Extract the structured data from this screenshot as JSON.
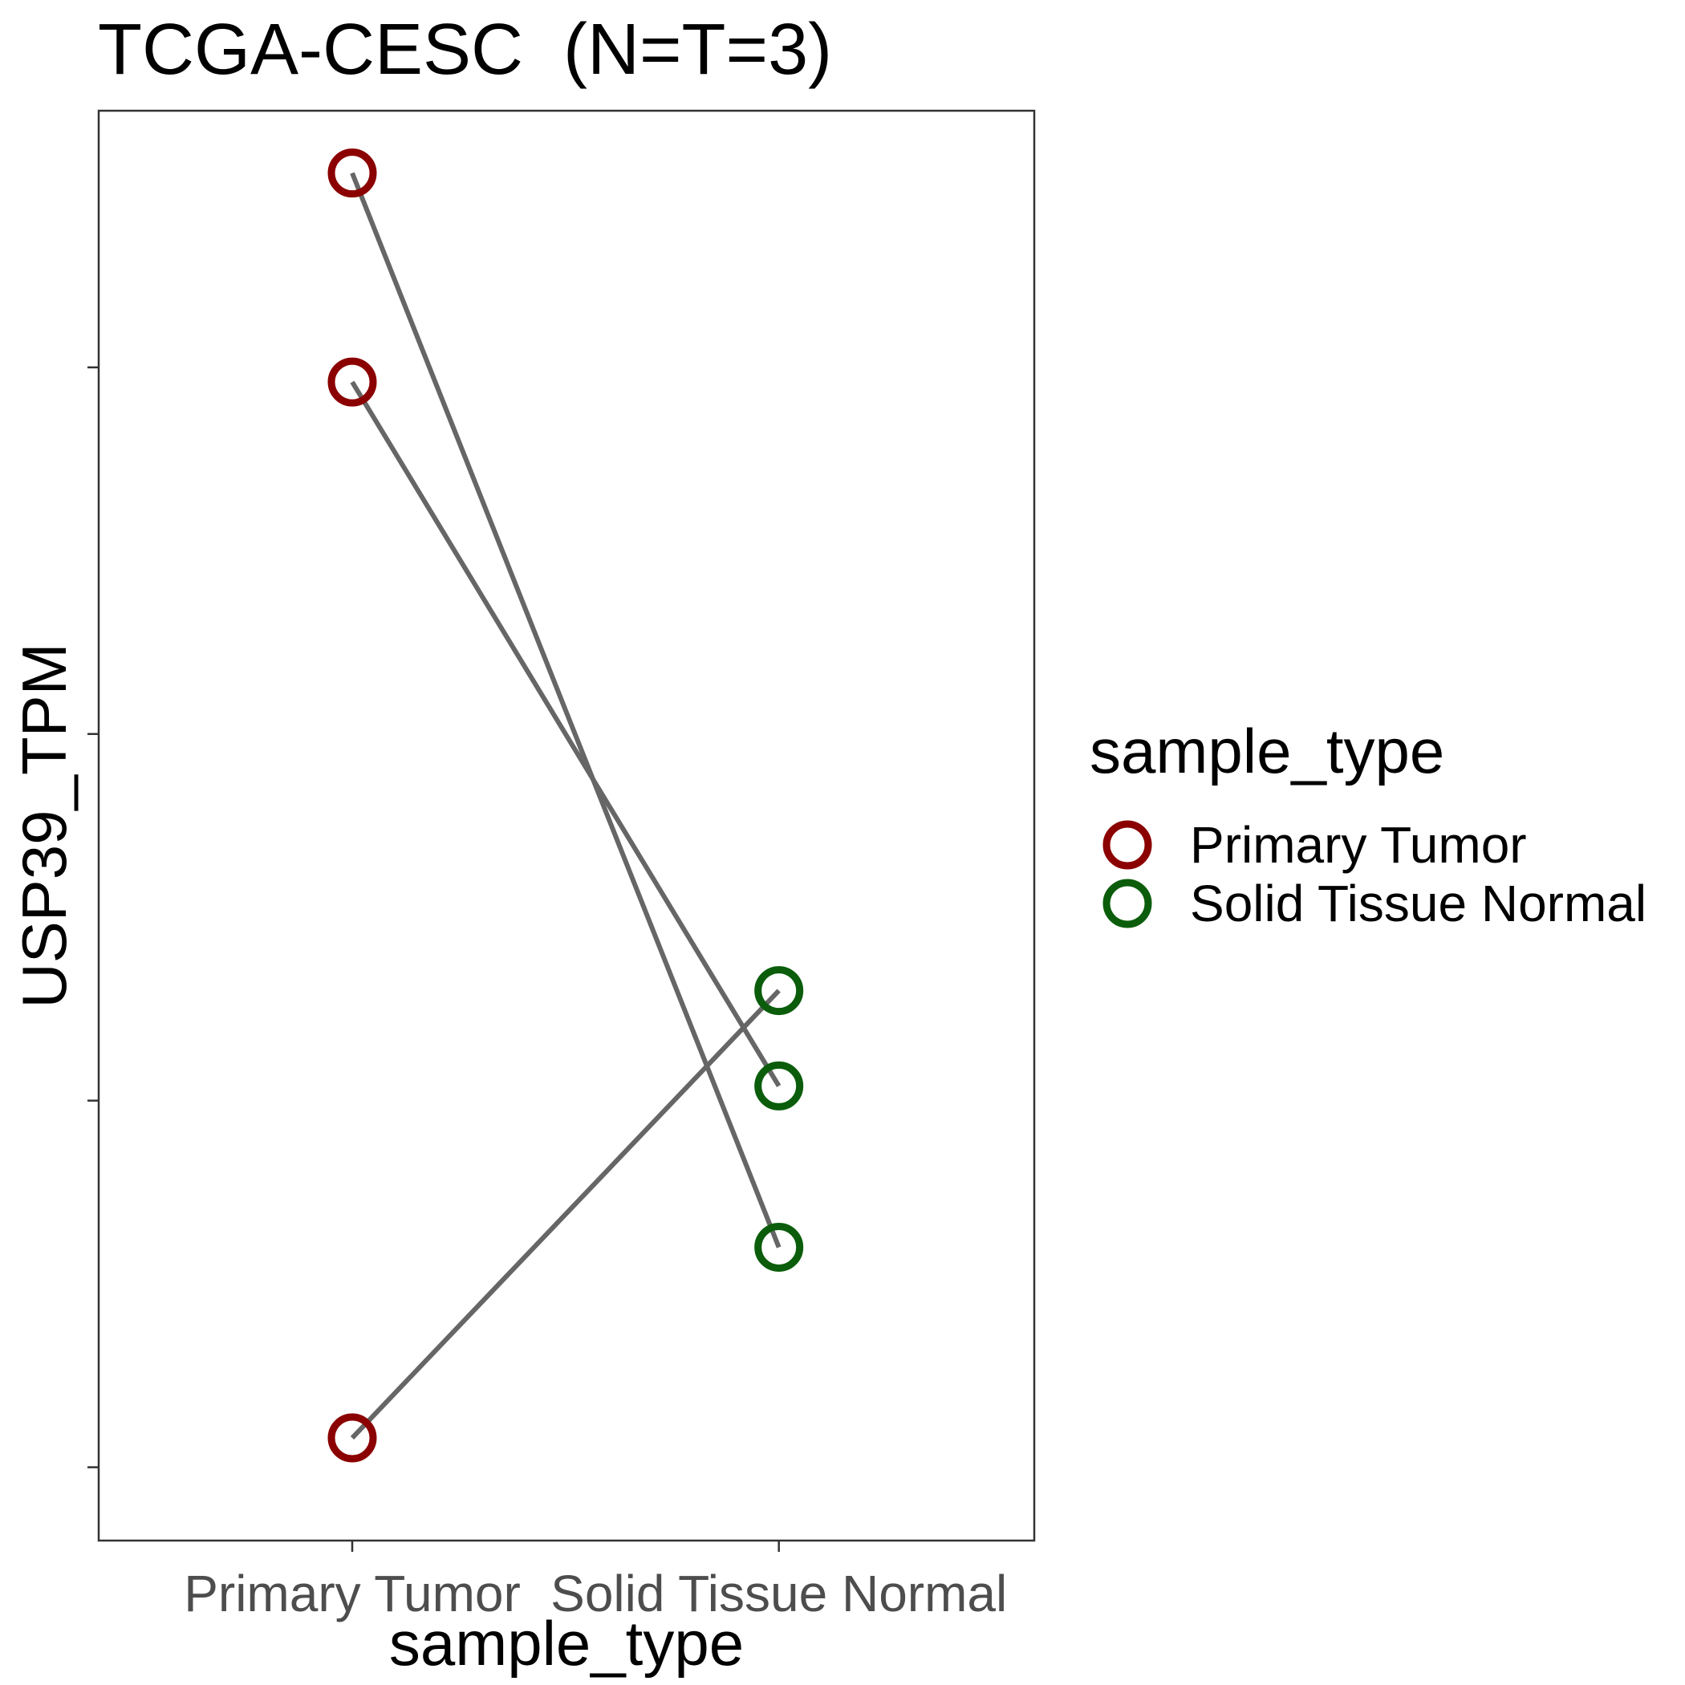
{
  "chart_data": {
    "type": "line",
    "title": "TCGA-CESC  (N=T=3)",
    "xlabel": "sample_type",
    "ylabel": "USP39_TPM",
    "categories": [
      "Primary Tumor",
      "Solid Tissue Normal"
    ],
    "ylim": [
      0.3,
      4.2
    ],
    "yticks": [
      0.5,
      1.5,
      2.5,
      3.5
    ],
    "ytick_labels_visible": false,
    "grid": false,
    "legend": {
      "title": "sample_type",
      "position": "right",
      "entries": [
        {
          "label": "Primary Tumor",
          "color": "#8b0000"
        },
        {
          "label": "Solid Tissue Normal",
          "color": "#0b5d0b"
        }
      ]
    },
    "line_color": "#666666",
    "pairs": [
      {
        "tumor": 4.03,
        "normal": 1.1
      },
      {
        "tumor": 3.46,
        "normal": 1.54
      },
      {
        "tumor": 0.58,
        "normal": 1.8
      }
    ]
  }
}
